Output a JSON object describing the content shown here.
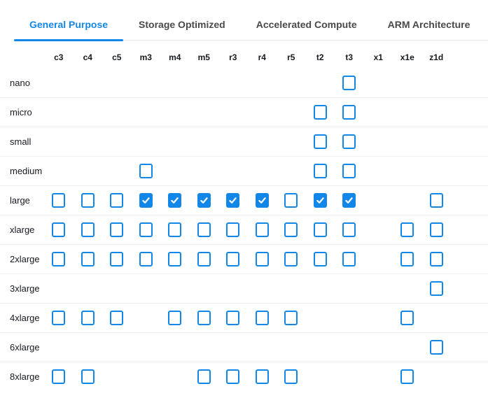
{
  "colors": {
    "accent_blue": "#1287e8",
    "inactive_tab_text": "#4a4a4a",
    "label_text": "#16191f",
    "row_divider": "#f1f1f1",
    "tabbar_border": "#e7e7e7",
    "checkmark": "#ffffff"
  },
  "icons": {
    "checked_checkbox": "check-icon"
  },
  "tabs": [
    {
      "label": "General Purpose",
      "active": true
    },
    {
      "label": "Storage Optimized",
      "active": false
    },
    {
      "label": "Accelerated Compute",
      "active": false
    },
    {
      "label": "ARM Architecture",
      "active": false
    }
  ],
  "matrix": {
    "columns": [
      "c3",
      "c4",
      "c5",
      "m3",
      "m4",
      "m5",
      "r3",
      "r4",
      "r5",
      "t2",
      "t3",
      "x1",
      "x1e",
      "z1d"
    ],
    "cell_states": [
      "none = no checkbox",
      "unchecked",
      "checked"
    ],
    "rows": [
      {
        "label": "nano",
        "cells": [
          "none",
          "none",
          "none",
          "none",
          "none",
          "none",
          "none",
          "none",
          "none",
          "none",
          "unchecked",
          "none",
          "none",
          "none"
        ]
      },
      {
        "label": "micro",
        "cells": [
          "none",
          "none",
          "none",
          "none",
          "none",
          "none",
          "none",
          "none",
          "none",
          "unchecked",
          "unchecked",
          "none",
          "none",
          "none"
        ]
      },
      {
        "label": "small",
        "cells": [
          "none",
          "none",
          "none",
          "none",
          "none",
          "none",
          "none",
          "none",
          "none",
          "unchecked",
          "unchecked",
          "none",
          "none",
          "none"
        ]
      },
      {
        "label": "medium",
        "cells": [
          "none",
          "none",
          "none",
          "unchecked",
          "none",
          "none",
          "none",
          "none",
          "none",
          "unchecked",
          "unchecked",
          "none",
          "none",
          "none"
        ]
      },
      {
        "label": "large",
        "cells": [
          "unchecked",
          "unchecked",
          "unchecked",
          "checked",
          "checked",
          "checked",
          "checked",
          "checked",
          "unchecked",
          "checked",
          "checked",
          "none",
          "none",
          "unchecked"
        ]
      },
      {
        "label": "xlarge",
        "cells": [
          "unchecked",
          "unchecked",
          "unchecked",
          "unchecked",
          "unchecked",
          "unchecked",
          "unchecked",
          "unchecked",
          "unchecked",
          "unchecked",
          "unchecked",
          "none",
          "unchecked",
          "unchecked"
        ]
      },
      {
        "label": "2xlarge",
        "cells": [
          "unchecked",
          "unchecked",
          "unchecked",
          "unchecked",
          "unchecked",
          "unchecked",
          "unchecked",
          "unchecked",
          "unchecked",
          "unchecked",
          "unchecked",
          "none",
          "unchecked",
          "unchecked"
        ]
      },
      {
        "label": "3xlarge",
        "cells": [
          "none",
          "none",
          "none",
          "none",
          "none",
          "none",
          "none",
          "none",
          "none",
          "none",
          "none",
          "none",
          "none",
          "unchecked"
        ]
      },
      {
        "label": "4xlarge",
        "cells": [
          "unchecked",
          "unchecked",
          "unchecked",
          "none",
          "unchecked",
          "unchecked",
          "unchecked",
          "unchecked",
          "unchecked",
          "none",
          "none",
          "none",
          "unchecked",
          "none"
        ]
      },
      {
        "label": "6xlarge",
        "cells": [
          "none",
          "none",
          "none",
          "none",
          "none",
          "none",
          "none",
          "none",
          "none",
          "none",
          "none",
          "none",
          "none",
          "unchecked"
        ]
      },
      {
        "label": "8xlarge",
        "cells": [
          "unchecked",
          "unchecked",
          "none",
          "none",
          "none",
          "unchecked",
          "unchecked",
          "unchecked",
          "unchecked",
          "none",
          "none",
          "none",
          "unchecked",
          "none"
        ]
      }
    ]
  }
}
